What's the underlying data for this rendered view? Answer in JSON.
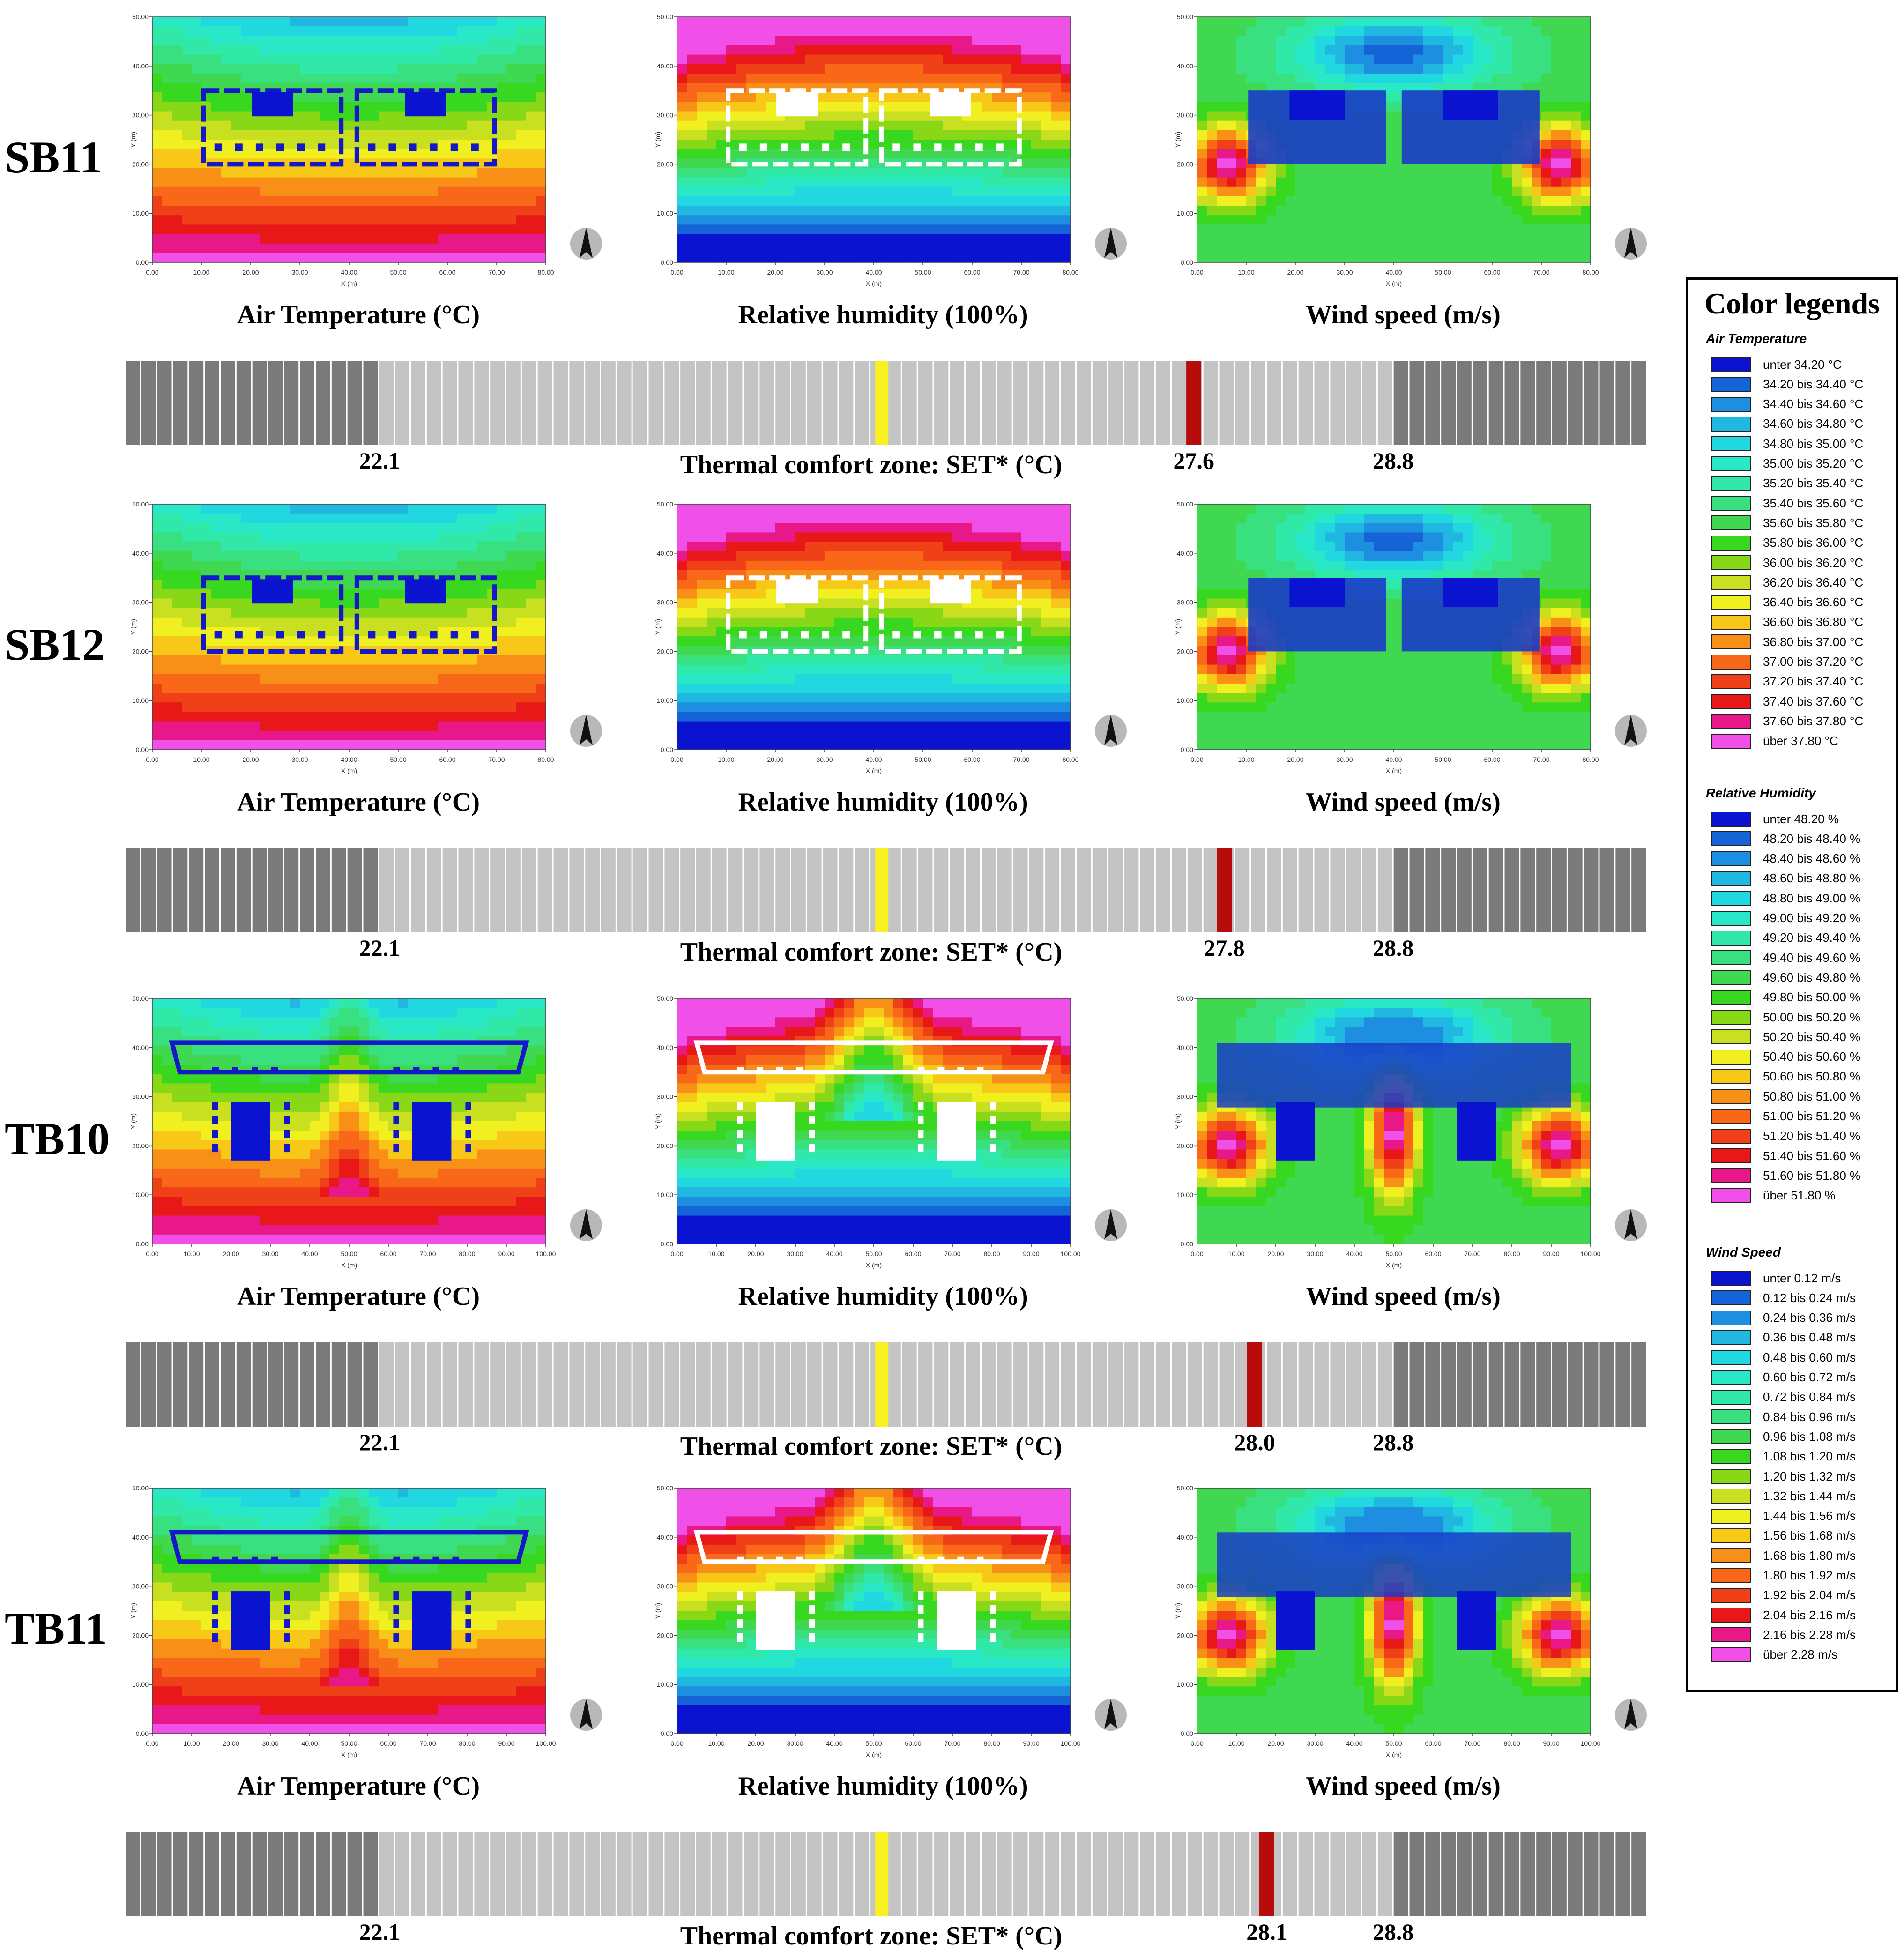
{
  "rows": [
    {
      "id": "SB11",
      "set_value": "27.6",
      "set_pos": 0.702,
      "x_max": 80
    },
    {
      "id": "SB12",
      "set_value": "27.8",
      "set_pos": 0.722,
      "x_max": 80
    },
    {
      "id": "TB10",
      "set_value": "28.0",
      "set_pos": 0.742,
      "x_max": 100
    },
    {
      "id": "TB11",
      "set_value": "28.1",
      "set_pos": 0.75,
      "x_max": 100
    }
  ],
  "captions": {
    "air": "Air Temperature (°C)",
    "rh": "Relative humidity (100%)",
    "wind": "Wind speed (m/s)"
  },
  "set_scale": {
    "title": "Thermal comfort zone: SET* (°C)",
    "low": "22.1",
    "high": "28.8",
    "neutral_pos": 0.497,
    "comfort_low_pos": 0.167,
    "comfort_high_pos": 0.833
  },
  "legend": {
    "title": "Color legends",
    "colors": [
      "#0a14d0",
      "#1464d8",
      "#1e8fe0",
      "#20b8e0",
      "#22d8e0",
      "#28e8c8",
      "#30e8a8",
      "#38e080",
      "#40d850",
      "#38d820",
      "#88d818",
      "#c8e020",
      "#f0f020",
      "#f8c818",
      "#f89018",
      "#f86818",
      "#f04018",
      "#e81818",
      "#e81888",
      "#f050e8"
    ],
    "groups": [
      {
        "head": "Air Temperature",
        "items": [
          "unter 34.20 °C",
          "34.20 bis 34.40 °C",
          "34.40 bis 34.60 °C",
          "34.60 bis 34.80 °C",
          "34.80 bis 35.00 °C",
          "35.00 bis 35.20 °C",
          "35.20 bis 35.40 °C",
          "35.40 bis 35.60 °C",
          "35.60 bis 35.80 °C",
          "35.80 bis 36.00 °C",
          "36.00 bis 36.20 °C",
          "36.20 bis 36.40 °C",
          "36.40 bis 36.60 °C",
          "36.60 bis 36.80 °C",
          "36.80 bis 37.00 °C",
          "37.00 bis 37.20 °C",
          "37.20 bis 37.40 °C",
          "37.40 bis 37.60 °C",
          "37.60 bis 37.80 °C",
          "über 37.80 °C"
        ]
      },
      {
        "head": "Relative Humidity",
        "items": [
          "unter 48.20 %",
          "48.20 bis 48.40 %",
          "48.40 bis 48.60 %",
          "48.60 bis 48.80 %",
          "48.80 bis 49.00 %",
          "49.00 bis 49.20 %",
          "49.20 bis 49.40 %",
          "49.40 bis 49.60 %",
          "49.60 bis 49.80 %",
          "49.80 bis 50.00 %",
          "50.00 bis 50.20 %",
          "50.20 bis 50.40 %",
          "50.40 bis 50.60 %",
          "50.60 bis 50.80 %",
          "50.80 bis 51.00 %",
          "51.00 bis 51.20 %",
          "51.20 bis 51.40 %",
          "51.40 bis 51.60 %",
          "51.60 bis 51.80 %",
          "über 51.80 %"
        ]
      },
      {
        "head": "Wind Speed",
        "items": [
          "unter 0.12 m/s",
          "0.12 bis 0.24 m/s",
          "0.24 bis 0.36 m/s",
          "0.36 bis 0.48 m/s",
          "0.48 bis 0.60 m/s",
          "0.60 bis 0.72 m/s",
          "0.72 bis 0.84 m/s",
          "0.84 bis 0.96 m/s",
          "0.96 bis 1.08 m/s",
          "1.08 bis 1.20 m/s",
          "1.20 bis 1.32 m/s",
          "1.32 bis 1.44 m/s",
          "1.44 bis 1.56 m/s",
          "1.56 bis 1.68 m/s",
          "1.68 bis 1.80 m/s",
          "1.80 bis 1.92 m/s",
          "1.92 bis 2.04 m/s",
          "2.04 bis 2.16 m/s",
          "2.16 bis 2.28 m/s",
          "über 2.28 m/s"
        ]
      }
    ]
  },
  "axes": {
    "x_label": "X (m)",
    "y_label": "Y (m)"
  }
}
